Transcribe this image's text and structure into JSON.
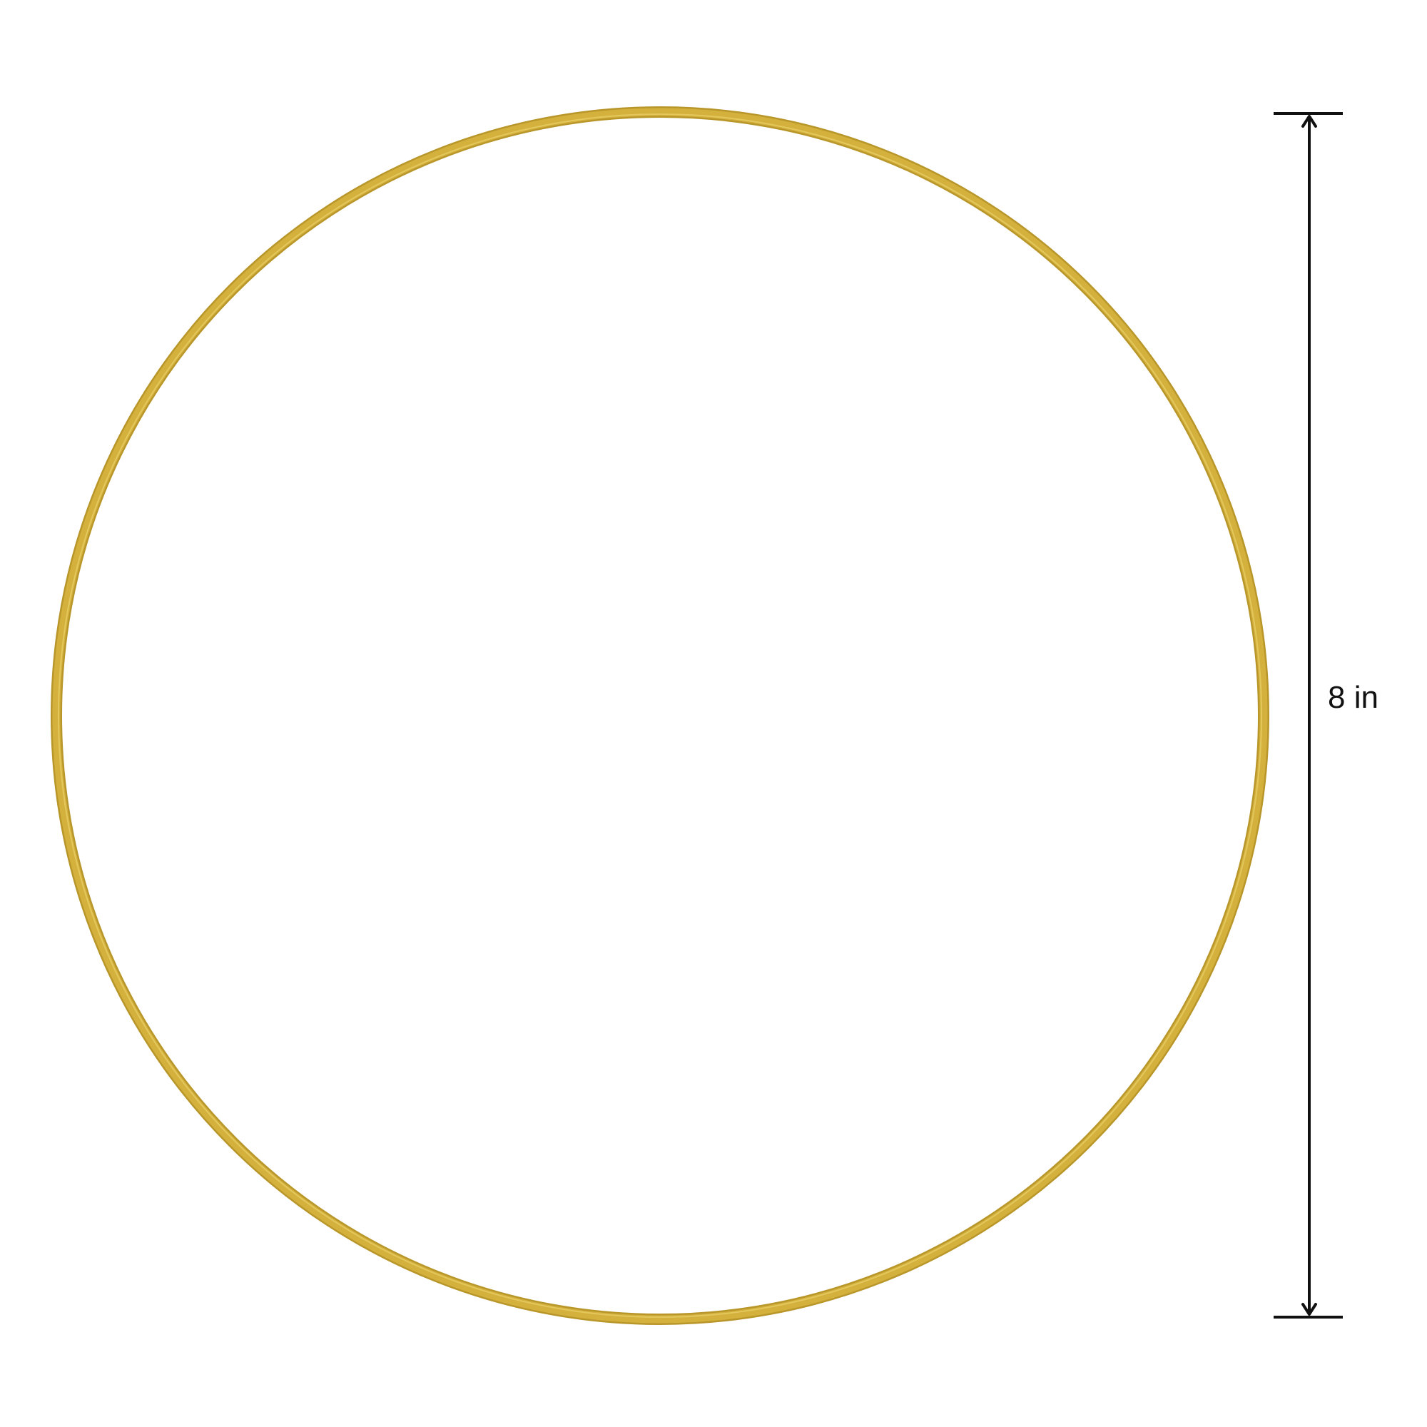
{
  "ring": {
    "color": "#d4b13c",
    "shade_color": "#b8962a",
    "highlight_color": "#ead06a"
  },
  "dimension": {
    "label": "8 in",
    "color": "#111111"
  }
}
